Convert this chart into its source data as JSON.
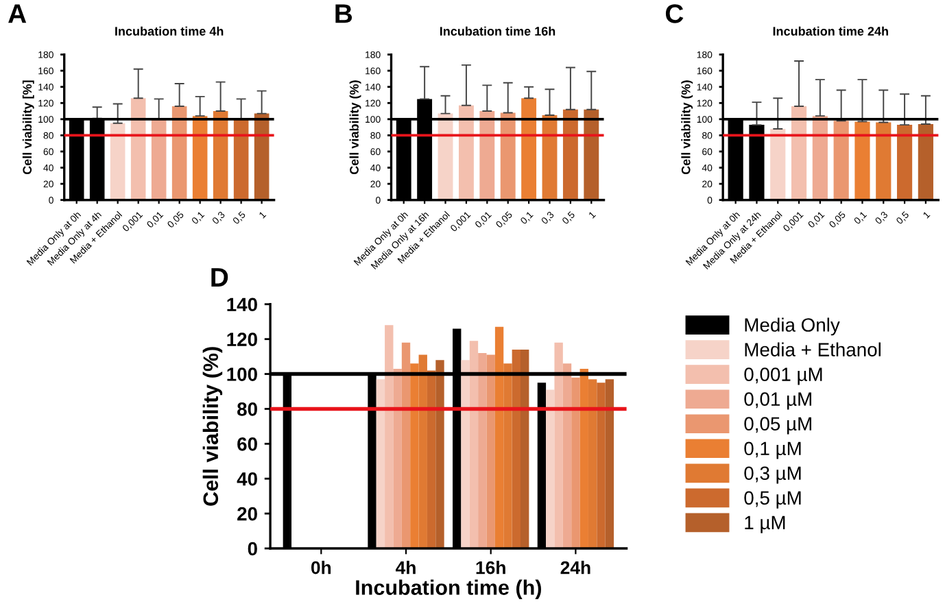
{
  "chart_data": [
    {
      "type": "bar",
      "title": "Incubation time 4h",
      "ylabel": "Cell viability [%]",
      "annotations": [
        "A"
      ],
      "categories": [
        "Media Only at 0h",
        "Media Only at 4h",
        "Media + Ethanol",
        "0,001",
        "0,01",
        "0,05",
        "0,1",
        "0,3",
        "0,5",
        "1"
      ],
      "values": [
        100,
        101,
        95,
        126,
        100,
        116,
        104,
        110,
        100,
        107
      ],
      "colors": [
        "#000000",
        "#000000",
        "#f6d3c8",
        "#f3bfae",
        "#eeaa92",
        "#ea9770",
        "#ea7f33",
        "#e07a33",
        "#cc6a2e",
        "#b5602b"
      ],
      "errors": [
        null,
        [
          101,
          115
        ],
        [
          95,
          119
        ],
        [
          126,
          162
        ],
        [
          100,
          125
        ],
        [
          116,
          144
        ],
        [
          104,
          128
        ],
        [
          110,
          146
        ],
        [
          100,
          125
        ],
        [
          107,
          135
        ]
      ],
      "ylim": [
        0,
        180
      ],
      "yticks": [
        0,
        20,
        40,
        60,
        80,
        100,
        120,
        140,
        160,
        180
      ],
      "ref_lines": [
        {
          "axis": "y",
          "value": 100,
          "color": "#000000"
        },
        {
          "axis": "y",
          "value": 80,
          "color": "#e8141b"
        }
      ]
    },
    {
      "type": "bar",
      "title": "Incubation time 16h",
      "ylabel": "Cell viability (%)",
      "annotations": [
        "B"
      ],
      "categories": [
        "Media Only at 0h",
        "Media Only at 16h",
        "Media + Ethanol",
        "0,001",
        "0,01",
        "0,05",
        "0,1",
        "0,3",
        "0,5",
        "1"
      ],
      "values": [
        100,
        125,
        107,
        117,
        110,
        108,
        126,
        105,
        112,
        112
      ],
      "colors": [
        "#000000",
        "#000000",
        "#f6d3c8",
        "#f3bfae",
        "#eeaa92",
        "#ea9770",
        "#ea7f33",
        "#e07a33",
        "#cc6a2e",
        "#b5602b"
      ],
      "errors": [
        null,
        [
          125,
          165
        ],
        [
          107,
          129
        ],
        [
          117,
          167
        ],
        [
          110,
          142
        ],
        [
          108,
          145
        ],
        [
          126,
          140
        ],
        [
          105,
          137
        ],
        [
          112,
          164
        ],
        [
          112,
          159
        ]
      ],
      "ylim": [
        0,
        180
      ],
      "yticks": [
        0,
        20,
        40,
        60,
        80,
        100,
        120,
        140,
        160,
        180
      ],
      "ref_lines": [
        {
          "axis": "y",
          "value": 100,
          "color": "#000000"
        },
        {
          "axis": "y",
          "value": 80,
          "color": "#e8141b"
        }
      ]
    },
    {
      "type": "bar",
      "title": "Incubation time 24h",
      "ylabel": "Cell viability (%)",
      "annotations": [
        "C"
      ],
      "categories": [
        "Media Only at 0h",
        "Media Only at 24h",
        "Media + Ethanol",
        "0,001",
        "0,01",
        "0,05",
        "0,1",
        "0,3",
        "0,5",
        "1"
      ],
      "values": [
        100,
        93,
        88,
        116,
        104,
        98,
        97,
        96,
        93,
        94
      ],
      "colors": [
        "#000000",
        "#000000",
        "#f6d3c8",
        "#f3bfae",
        "#eeaa92",
        "#ea9770",
        "#ea7f33",
        "#e07a33",
        "#cc6a2e",
        "#b5602b"
      ],
      "errors": [
        null,
        [
          93,
          121
        ],
        [
          88,
          126
        ],
        [
          116,
          172
        ],
        [
          104,
          149
        ],
        [
          98,
          136
        ],
        [
          97,
          149
        ],
        [
          96,
          136
        ],
        [
          93,
          131
        ],
        [
          94,
          129
        ]
      ],
      "ylim": [
        0,
        180
      ],
      "yticks": [
        0,
        20,
        40,
        60,
        80,
        100,
        120,
        140,
        160,
        180
      ],
      "ref_lines": [
        {
          "axis": "y",
          "value": 100,
          "color": "#000000"
        },
        {
          "axis": "y",
          "value": 80,
          "color": "#e8141b"
        }
      ]
    },
    {
      "type": "bar",
      "xlabel": "Incubation time (h)",
      "ylabel": "Cell viability (%)",
      "annotations": [
        "D"
      ],
      "legend": "right",
      "categories": [
        "0h",
        "4h",
        "16h",
        "24h"
      ],
      "series": [
        {
          "name": "Media Only",
          "color": "#000000",
          "values": [
            100,
            100,
            126,
            95
          ]
        },
        {
          "name": "Media + Ethanol",
          "color": "#f6d3c8",
          "values": [
            null,
            97,
            108,
            91
          ]
        },
        {
          "name": "0,001 µM",
          "color": "#f3bfae",
          "values": [
            null,
            128,
            119,
            118
          ]
        },
        {
          "name": "0,01 µM",
          "color": "#eeaa92",
          "values": [
            null,
            103,
            112,
            106
          ]
        },
        {
          "name": "0,05 µM",
          "color": "#ea9770",
          "values": [
            null,
            118,
            111,
            98
          ]
        },
        {
          "name": "0,1 µM",
          "color": "#ea7f33",
          "values": [
            null,
            106,
            127,
            103
          ]
        },
        {
          "name": "0,3 µM",
          "color": "#e07a33",
          "values": [
            null,
            111,
            106,
            97
          ]
        },
        {
          "name": "0,5 µM",
          "color": "#cc6a2e",
          "values": [
            null,
            102,
            114,
            95
          ]
        },
        {
          "name": "1 µM",
          "color": "#b5602b",
          "values": [
            null,
            108,
            114,
            97
          ]
        }
      ],
      "ylim": [
        0,
        140
      ],
      "yticks": [
        0,
        20,
        40,
        60,
        80,
        100,
        120,
        140
      ],
      "ref_lines": [
        {
          "axis": "y",
          "value": 100,
          "color": "#000000"
        },
        {
          "axis": "y",
          "value": 80,
          "color": "#e8141b"
        }
      ]
    }
  ]
}
